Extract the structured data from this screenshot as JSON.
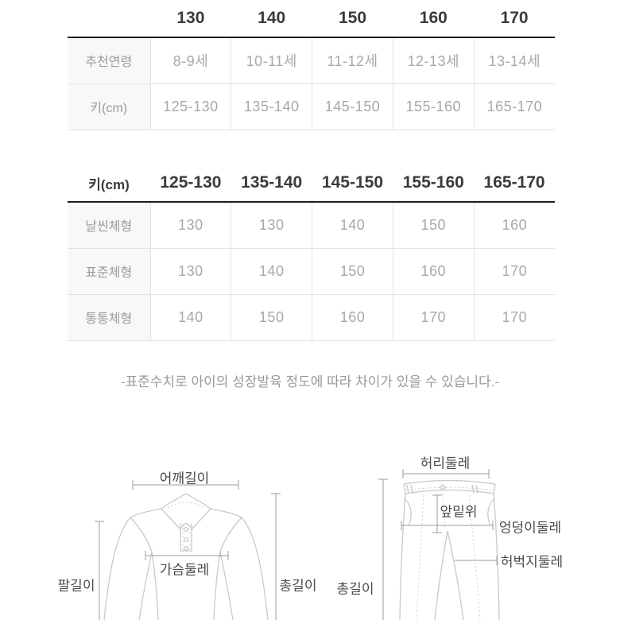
{
  "size_table": {
    "corner_label": "",
    "columns": [
      "130",
      "140",
      "150",
      "160",
      "170"
    ],
    "rows": [
      {
        "label": "추천연령",
        "values": [
          "8-9세",
          "10-11세",
          "11-12세",
          "12-13세",
          "13-14세"
        ]
      },
      {
        "label": "키(cm)",
        "values": [
          "125-130",
          "135-140",
          "145-150",
          "155-160",
          "165-170"
        ]
      }
    ]
  },
  "body_table": {
    "corner_label": "키(cm)",
    "columns": [
      "125-130",
      "135-140",
      "145-150",
      "155-160",
      "165-170"
    ],
    "rows": [
      {
        "label": "날씬체형",
        "values": [
          "130",
          "130",
          "140",
          "150",
          "160"
        ]
      },
      {
        "label": "표준체형",
        "values": [
          "130",
          "140",
          "150",
          "160",
          "170"
        ]
      },
      {
        "label": "통통체형",
        "values": [
          "140",
          "150",
          "160",
          "170",
          "170"
        ]
      }
    ]
  },
  "note": "-표준수치로 아이의 성장발육 정도에 따라 차이가 있을 수 있습니다.-",
  "measurement_diagram": {
    "shirt": {
      "shoulder_label": "어깨길이",
      "arm_label": "팔길이",
      "chest_label": "가슴둘레",
      "length_label": "총길이"
    },
    "pants": {
      "waist_label": "허리둘레",
      "front_rise_label": "앞밑위",
      "hip_label": "엉덩이둘레",
      "thigh_label": "허벅지둘레",
      "length_label": "총길이"
    }
  },
  "colors": {
    "header_text": "#3a3a3a",
    "cell_text": "#a8a8a8",
    "label_bg": "#f8f8f8",
    "cell_border": "#e3e3e3",
    "table_top_border": "#1c1c1c",
    "note_text": "#9a9a9a",
    "drawing_line": "#c9c9c9",
    "measure_line": "#9b9b9b",
    "diagram_label": "#4a4a4a"
  }
}
